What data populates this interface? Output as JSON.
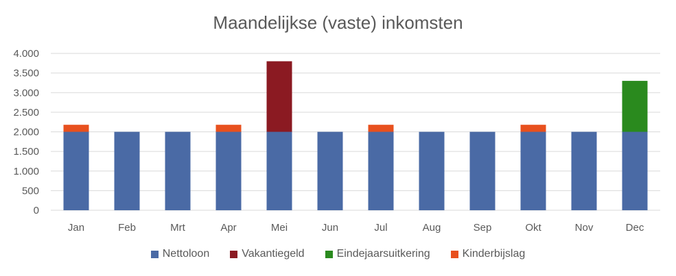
{
  "chart_data": {
    "type": "bar",
    "stacked": true,
    "title": "Maandelijkse (vaste) inkomsten",
    "categories": [
      "Jan",
      "Feb",
      "Mrt",
      "Apr",
      "Mei",
      "Jun",
      "Jul",
      "Aug",
      "Sep",
      "Okt",
      "Nov",
      "Dec"
    ],
    "series": [
      {
        "name": "Nettoloon",
        "color": "#4A6AA5",
        "values": [
          2000,
          2000,
          2000,
          2000,
          2000,
          2000,
          2000,
          2000,
          2000,
          2000,
          2000,
          2000
        ]
      },
      {
        "name": "Vakantiegeld",
        "color": "#8B1A22",
        "values": [
          0,
          0,
          0,
          0,
          1800,
          0,
          0,
          0,
          0,
          0,
          0,
          0
        ]
      },
      {
        "name": "Eindejaarsuitkering",
        "color": "#2A8A1E",
        "values": [
          0,
          0,
          0,
          0,
          0,
          0,
          0,
          0,
          0,
          0,
          0,
          1300
        ]
      },
      {
        "name": "Kinderbijslag",
        "color": "#E8501E",
        "values": [
          180,
          0,
          0,
          180,
          0,
          0,
          180,
          0,
          0,
          180,
          0,
          0
        ]
      }
    ],
    "ylim": [
      0,
      4000
    ],
    "yticks": [
      0,
      500,
      1000,
      1500,
      2000,
      2500,
      3000,
      3500,
      4000
    ],
    "ytick_labels": [
      "0",
      "500",
      "1.000",
      "1.500",
      "2.000",
      "2.500",
      "3.000",
      "3.500",
      "4.000"
    ],
    "xlabel": "",
    "ylabel": "",
    "grid": true,
    "legend_position": "bottom"
  }
}
